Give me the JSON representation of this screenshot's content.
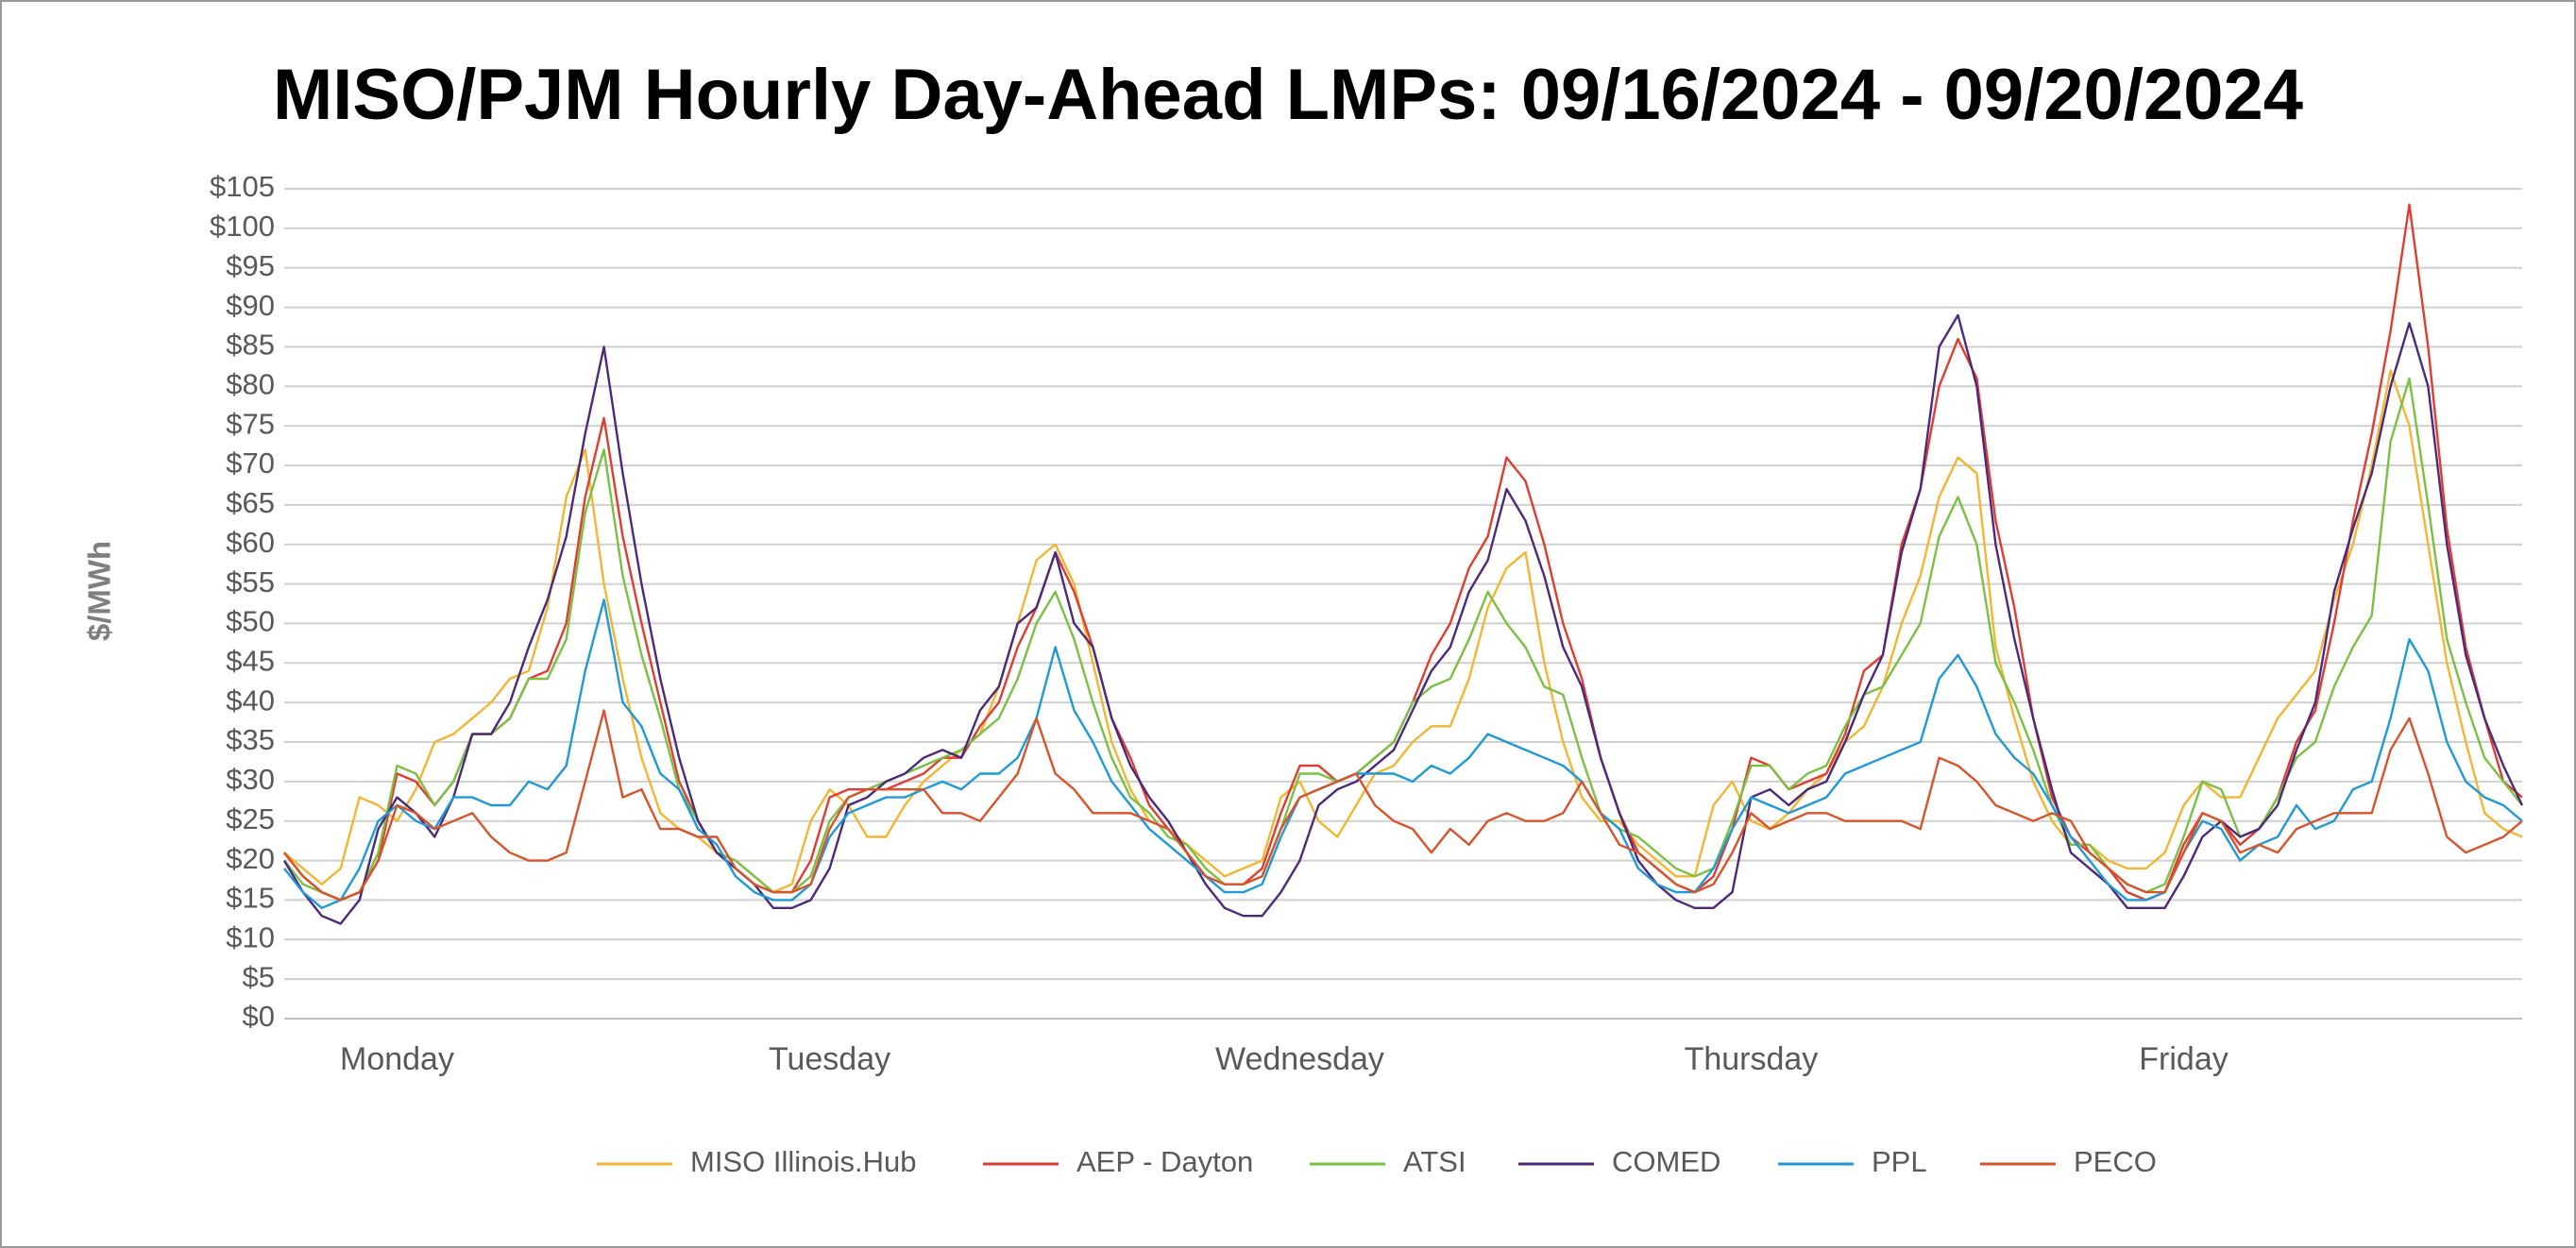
{
  "chart_data": {
    "type": "line",
    "title": "MISO/PJM Hourly Day-Ahead LMPs: 09/16/2024 - 09/20/2024",
    "y_label": "$/MWh",
    "categories": [
      null,
      null,
      null,
      null,
      null,
      null,
      "Monday",
      null,
      null,
      null,
      null,
      null,
      null,
      null,
      null,
      null,
      null,
      null,
      null,
      null,
      null,
      null,
      null,
      null,
      null,
      null,
      null,
      null,
      null,
      "Tuesday",
      null,
      null,
      null,
      null,
      null,
      null,
      null,
      null,
      null,
      null,
      null,
      null,
      null,
      null,
      null,
      null,
      null,
      null,
      null,
      null,
      null,
      null,
      null,
      null,
      "Wednesday",
      null,
      null,
      null,
      null,
      null,
      null,
      null,
      null,
      null,
      null,
      null,
      null,
      null,
      null,
      null,
      null,
      null,
      null,
      null,
      null,
      null,
      null,
      null,
      "Thursday",
      null,
      null,
      null,
      null,
      null,
      null,
      null,
      null,
      null,
      null,
      null,
      null,
      null,
      null,
      null,
      null,
      null,
      null,
      null,
      null,
      null,
      null,
      "Friday",
      null,
      null,
      null,
      null,
      null,
      null,
      null,
      null,
      null,
      null,
      null,
      null,
      null,
      null,
      null,
      null,
      null,
      null
    ],
    "ylim": [
      0,
      105
    ],
    "yticks": [
      {
        "value": 0,
        "label": "$0"
      },
      {
        "value": 5,
        "label": "$5"
      },
      {
        "value": 10,
        "label": "$10"
      },
      {
        "value": 15,
        "label": "$15"
      },
      {
        "value": 20,
        "label": "$20"
      },
      {
        "value": 25,
        "label": "$25"
      },
      {
        "value": 30,
        "label": "$30"
      },
      {
        "value": 35,
        "label": "$35"
      },
      {
        "value": 40,
        "label": "$40"
      },
      {
        "value": 45,
        "label": "$45"
      },
      {
        "value": 50,
        "label": "$50"
      },
      {
        "value": 55,
        "label": "$55"
      },
      {
        "value": 60,
        "label": "$60"
      },
      {
        "value": 65,
        "label": "$65"
      },
      {
        "value": 70,
        "label": "$70"
      },
      {
        "value": 75,
        "label": "$75"
      },
      {
        "value": 80,
        "label": "$80"
      },
      {
        "value": 85,
        "label": "$85"
      },
      {
        "value": 90,
        "label": "$90"
      },
      {
        "value": 95,
        "label": "$95"
      },
      {
        "value": 100,
        "label": "$100"
      },
      {
        "value": 105,
        "label": "$105"
      }
    ],
    "grid": true,
    "legend": "bottom",
    "series": [
      {
        "name": "MISO Illinois.Hub",
        "color": "#f2b632",
        "values": [
          21,
          19,
          17,
          19,
          28,
          27,
          25,
          29,
          35,
          36,
          38,
          40,
          43,
          44,
          52,
          66,
          72,
          55,
          43,
          33,
          26,
          24,
          23,
          21,
          20,
          18,
          16,
          17,
          25,
          29,
          27,
          23,
          23,
          27,
          30,
          32,
          34,
          36,
          42,
          50,
          58,
          60,
          55,
          45,
          35,
          29,
          25,
          24,
          22,
          20,
          18,
          19,
          20,
          28,
          30,
          25,
          23,
          27,
          31,
          32,
          35,
          37,
          37,
          43,
          52,
          57,
          59,
          45,
          35,
          28,
          25,
          25,
          22,
          20,
          18,
          18,
          27,
          30,
          25,
          24,
          26,
          29,
          31,
          35,
          37,
          42,
          50,
          56,
          66,
          71,
          69,
          47,
          38,
          30,
          25,
          22,
          22,
          20,
          19,
          19,
          21,
          27,
          30,
          28,
          28,
          33,
          38,
          41,
          44,
          53,
          60,
          70,
          82,
          75,
          60,
          45,
          35,
          26,
          24,
          23
        ]
      },
      {
        "name": "AEP - Dayton",
        "color": "#e03c31",
        "values": [
          21,
          18,
          16,
          15,
          16,
          20,
          31,
          30,
          27,
          30,
          36,
          36,
          38,
          43,
          44,
          50,
          66,
          76,
          61,
          50,
          40,
          30,
          25,
          21,
          19,
          17,
          16,
          16,
          20,
          28,
          29,
          29,
          29,
          30,
          31,
          33,
          33,
          37,
          40,
          47,
          52,
          59,
          54,
          47,
          38,
          33,
          27,
          24,
          21,
          18,
          17,
          17,
          19,
          26,
          32,
          32,
          30,
          31,
          33,
          35,
          40,
          46,
          50,
          57,
          61,
          71,
          68,
          60,
          50,
          43,
          33,
          26,
          21,
          19,
          17,
          16,
          18,
          24,
          33,
          32,
          29,
          30,
          31,
          36,
          44,
          46,
          60,
          67,
          80,
          86,
          81,
          63,
          52,
          38,
          28,
          23,
          21,
          19,
          16,
          15,
          16,
          22,
          26,
          25,
          22,
          24,
          28,
          35,
          39,
          50,
          63,
          74,
          87,
          103,
          85,
          62,
          47,
          38,
          30,
          28
        ]
      },
      {
        "name": "ATSI",
        "color": "#7ac143",
        "values": [
          20,
          17,
          16,
          15,
          16,
          21,
          32,
          31,
          27,
          30,
          36,
          36,
          38,
          43,
          43,
          48,
          64,
          72,
          56,
          46,
          38,
          29,
          25,
          21,
          20,
          18,
          16,
          16,
          18,
          25,
          28,
          29,
          30,
          31,
          32,
          33,
          34,
          36,
          38,
          43,
          50,
          54,
          48,
          40,
          33,
          28,
          26,
          23,
          22,
          19,
          17,
          17,
          18,
          24,
          31,
          31,
          30,
          31,
          33,
          35,
          40,
          42,
          43,
          48,
          54,
          50,
          47,
          42,
          41,
          33,
          26,
          24,
          23,
          21,
          19,
          18,
          19,
          25,
          32,
          32,
          29,
          31,
          32,
          37,
          41,
          42,
          46,
          50,
          61,
          66,
          60,
          45,
          40,
          34,
          27,
          22,
          22,
          19,
          17,
          16,
          17,
          23,
          30,
          29,
          23,
          24,
          28,
          33,
          35,
          42,
          47,
          51,
          73,
          81,
          65,
          48,
          40,
          33,
          30,
          27
        ]
      },
      {
        "name": "COMED",
        "color": "#4b2a7b",
        "values": [
          20,
          16,
          13,
          12,
          15,
          24,
          28,
          26,
          23,
          28,
          36,
          36,
          40,
          47,
          53,
          61,
          74,
          85,
          69,
          55,
          43,
          33,
          25,
          21,
          19,
          17,
          14,
          14,
          15,
          19,
          27,
          28,
          30,
          31,
          33,
          34,
          33,
          39,
          42,
          50,
          52,
          59,
          50,
          47,
          38,
          32,
          28,
          25,
          21,
          17,
          14,
          13,
          13,
          16,
          20,
          27,
          29,
          30,
          32,
          34,
          39,
          44,
          47,
          54,
          58,
          67,
          63,
          56,
          47,
          42,
          33,
          26,
          20,
          17,
          15,
          14,
          14,
          16,
          28,
          29,
          27,
          29,
          30,
          35,
          41,
          46,
          59,
          67,
          85,
          89,
          80,
          60,
          48,
          38,
          29,
          21,
          19,
          17,
          14,
          14,
          14,
          18,
          23,
          25,
          23,
          24,
          27,
          34,
          40,
          54,
          62,
          69,
          80,
          88,
          80,
          60,
          46,
          38,
          32,
          27
        ]
      },
      {
        "name": "PPL",
        "color": "#1f9ad6",
        "values": [
          19,
          16,
          14,
          15,
          19,
          25,
          27,
          25,
          24,
          28,
          28,
          27,
          27,
          30,
          29,
          32,
          44,
          53,
          40,
          37,
          31,
          29,
          24,
          22,
          18,
          16,
          15,
          15,
          17,
          23,
          26,
          27,
          28,
          28,
          29,
          30,
          29,
          31,
          31,
          33,
          38,
          47,
          39,
          35,
          30,
          27,
          24,
          22,
          20,
          18,
          16,
          16,
          17,
          23,
          28,
          29,
          30,
          31,
          31,
          31,
          30,
          32,
          31,
          33,
          36,
          35,
          34,
          33,
          32,
          30,
          26,
          24,
          19,
          17,
          16,
          16,
          19,
          24,
          28,
          27,
          26,
          27,
          28,
          31,
          32,
          33,
          34,
          35,
          43,
          46,
          42,
          36,
          33,
          31,
          27,
          23,
          20,
          17,
          15,
          15,
          16,
          21,
          25,
          24,
          20,
          22,
          23,
          27,
          24,
          25,
          29,
          30,
          38,
          48,
          44,
          35,
          30,
          28,
          27,
          25
        ]
      },
      {
        "name": "PECO",
        "color": "#d9532a",
        "values": [
          21,
          18,
          16,
          15,
          16,
          20,
          27,
          26,
          24,
          25,
          26,
          23,
          21,
          20,
          20,
          21,
          30,
          39,
          28,
          29,
          24,
          24,
          23,
          23,
          19,
          17,
          16,
          16,
          17,
          24,
          28,
          29,
          29,
          29,
          29,
          26,
          26,
          25,
          28,
          31,
          38,
          31,
          29,
          26,
          26,
          26,
          25,
          24,
          21,
          18,
          17,
          17,
          18,
          24,
          28,
          29,
          30,
          31,
          27,
          25,
          24,
          21,
          24,
          22,
          25,
          26,
          25,
          25,
          26,
          30,
          26,
          22,
          21,
          19,
          17,
          16,
          17,
          21,
          26,
          24,
          25,
          26,
          26,
          25,
          25,
          25,
          25,
          24,
          33,
          32,
          30,
          27,
          26,
          25,
          26,
          25,
          21,
          19,
          17,
          16,
          16,
          21,
          26,
          25,
          21,
          22,
          21,
          24,
          25,
          26,
          26,
          26,
          34,
          38,
          31,
          23,
          21,
          22,
          23,
          25
        ]
      }
    ]
  }
}
